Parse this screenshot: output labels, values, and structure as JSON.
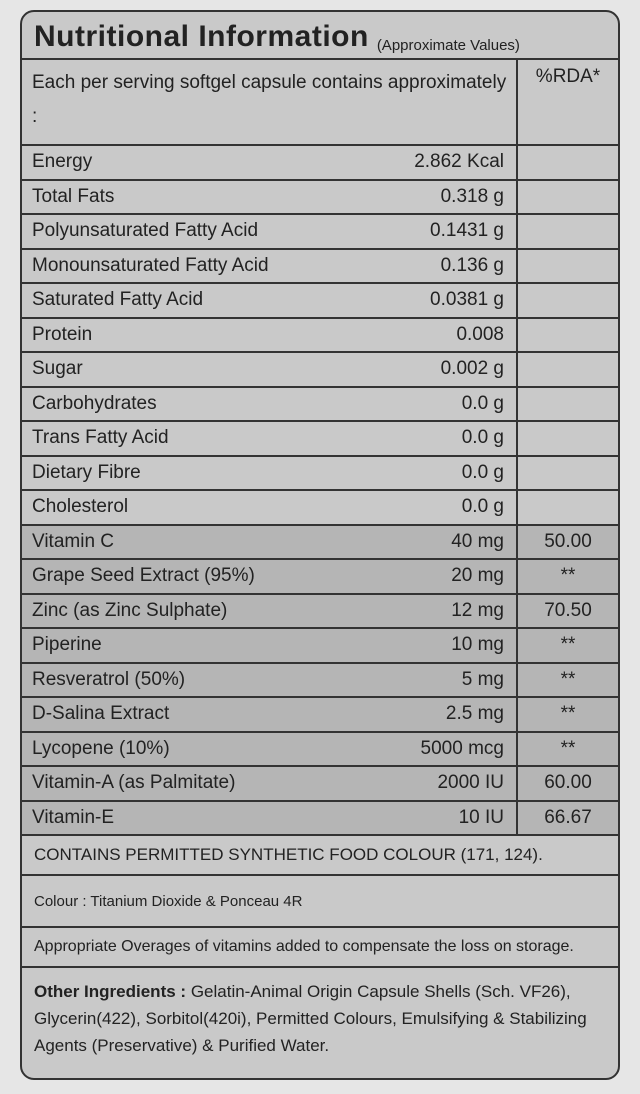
{
  "title": "Nutritional Information",
  "title_note": "(Approximate Values)",
  "header": {
    "serving": "Each per serving softgel capsule contains approximately :",
    "rda": "%RDA*"
  },
  "table": {
    "rows": [
      {
        "name": "Energy",
        "amount": "2.862 Kcal"
      },
      {
        "name": "Total Fats",
        "amount": "0.318 g"
      },
      {
        "name": "Polyunsaturated Fatty Acid",
        "amount": "0.1431 g"
      },
      {
        "name": "Monounsaturated Fatty Acid",
        "amount": "0.136 g"
      },
      {
        "name": "Saturated Fatty Acid",
        "amount": "0.0381 g"
      },
      {
        "name": "Protein",
        "amount": "0.008"
      },
      {
        "name": "Sugar",
        "amount": "0.002 g"
      },
      {
        "name": "Carbohydrates",
        "amount": "0.0 g"
      },
      {
        "name": "Trans Fatty Acid",
        "amount": "0.0 g"
      },
      {
        "name": "Dietary Fibre",
        "amount": "0.0 g"
      },
      {
        "name": "Cholesterol",
        "amount": "0.0 g"
      },
      {
        "name": "Vitamin C",
        "amount": "40 mg",
        "rda": "50.00"
      },
      {
        "name": "Grape Seed Extract (95%)",
        "amount": "20 mg",
        "rda": "**"
      },
      {
        "name": "Zinc (as Zinc Sulphate)",
        "amount": "12 mg",
        "rda": "70.50"
      },
      {
        "name": "Piperine",
        "amount": "10 mg",
        "rda": "**"
      },
      {
        "name": "Resveratrol (50%)",
        "amount": "5 mg",
        "rda": "**"
      },
      {
        "name": "D-Salina Extract",
        "amount": "2.5 mg",
        "rda": "**"
      },
      {
        "name": "Lycopene (10%)",
        "amount": "5000 mcg",
        "rda": "**"
      },
      {
        "name": "Vitamin-A (as Palmitate)",
        "amount": "2000 IU",
        "rda": "60.00"
      },
      {
        "name": "Vitamin-E",
        "amount": "10 IU",
        "rda": "66.67"
      }
    ]
  },
  "notes": {
    "colour_warning": "CONTAINS PERMITTED SYNTHETIC FOOD COLOUR (171, 124).",
    "colour": "Colour : Titanium Dioxide & Ponceau 4R",
    "overages": "Appropriate Overages of vitamins added to compensate the loss on storage.",
    "ingredients_label": "Other Ingredients :",
    "ingredients": "Gelatin-Animal Origin Capsule Shells (Sch. VF26), Glycerin(422), Sorbitol(420i), Permitted Colours, Emulsifying & Stabilizing Agents (Preservative) & Purified Water."
  }
}
